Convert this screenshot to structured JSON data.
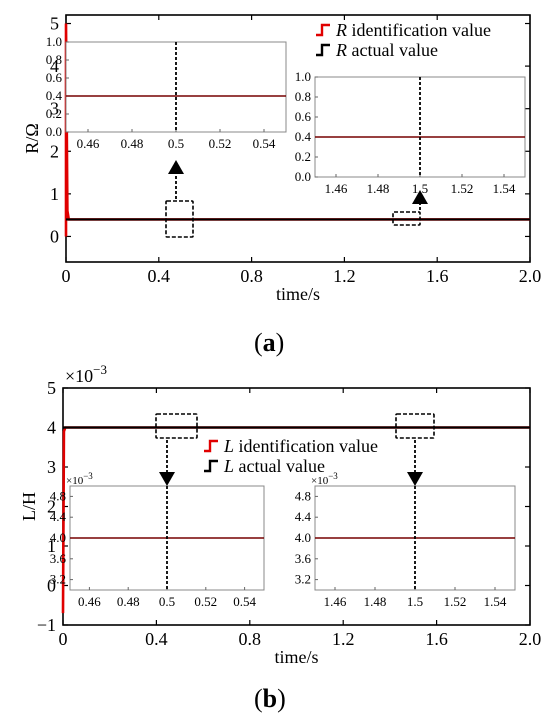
{
  "panel_a_label": "a",
  "panel_b_label": "b",
  "colors": {
    "identification": "#e00000",
    "actual": "#000000",
    "axis": "#000000"
  },
  "chart_data": [
    {
      "type": "line",
      "panel": "a",
      "xlabel": "time/s",
      "ylabel": "R/Ω",
      "xlim": [
        0,
        2.0
      ],
      "ylim": [
        -0.6,
        5.2
      ],
      "xticks": [
        0,
        0.4,
        0.8,
        1.2,
        1.6,
        2.0
      ],
      "xtick_labels": [
        "0",
        "0.4",
        "0.8",
        "1.2",
        "1.6",
        "2.0"
      ],
      "yticks": [
        0,
        1,
        2,
        3,
        4,
        5
      ],
      "ytick_labels": [
        "0",
        "1",
        "2",
        "3",
        "4",
        "5"
      ],
      "legend": {
        "placement": "top-right",
        "entries": [
          {
            "italic": "R",
            "text": " identification value",
            "color": "#e00000"
          },
          {
            "italic": "R",
            "text": " actual value",
            "color": "#000000"
          }
        ]
      },
      "series": [
        {
          "name": "R identification value",
          "x": [
            0,
            0,
            0.006,
            0.012,
            2.0
          ],
          "y": [
            0,
            5.0,
            0.6,
            0.4,
            0.4
          ]
        },
        {
          "name": "R actual value",
          "x": [
            0,
            2.0
          ],
          "y": [
            0.4,
            0.4
          ]
        }
      ],
      "insets": [
        {
          "xlim": [
            0.45,
            0.55
          ],
          "ylim": [
            0,
            1.0
          ],
          "xticks": [
            0.46,
            0.48,
            0.5,
            0.52,
            0.54
          ],
          "xtick_labels": [
            "0.46",
            "0.48",
            "0.5",
            "0.52",
            "0.54"
          ],
          "yticks": [
            0,
            0.2,
            0.4,
            0.6,
            0.8,
            1.0
          ],
          "ytick_labels": [
            "0.0",
            "0.2",
            "0.4",
            "0.6",
            "0.8",
            "1.0"
          ],
          "marker_x": 0.5,
          "value": 0.4,
          "exponent": ""
        },
        {
          "xlim": [
            1.45,
            1.55
          ],
          "ylim": [
            0,
            1.0
          ],
          "xticks": [
            1.46,
            1.48,
            1.5,
            1.52,
            1.54
          ],
          "xtick_labels": [
            "1.46",
            "1.48",
            "1.5",
            "1.52",
            "1.54"
          ],
          "yticks": [
            0,
            0.2,
            0.4,
            0.6,
            0.8,
            1.0
          ],
          "ytick_labels": [
            "0.0",
            "0.2",
            "0.4",
            "0.6",
            "0.8",
            "1.0"
          ],
          "marker_x": 1.5,
          "value": 0.4,
          "exponent": ""
        }
      ]
    },
    {
      "type": "line",
      "panel": "b",
      "xlabel": "time/s",
      "ylabel": "L/H",
      "exponent": "×10",
      "exponent_power": "−3",
      "xlim": [
        0,
        2.0
      ],
      "ylim": [
        -1,
        5
      ],
      "xticks": [
        0,
        0.4,
        0.8,
        1.2,
        1.6,
        2.0
      ],
      "xtick_labels": [
        "0",
        "0.4",
        "0.8",
        "1.2",
        "1.6",
        "2.0"
      ],
      "yticks": [
        -1,
        0,
        1,
        2,
        3,
        4,
        5
      ],
      "ytick_labels": [
        "−1",
        "0",
        "1",
        "2",
        "3",
        "4",
        "5"
      ],
      "legend": {
        "placement": "center",
        "entries": [
          {
            "italic": "L",
            "text": " identification value",
            "color": "#e00000"
          },
          {
            "italic": "L",
            "text": " actual value",
            "color": "#000000"
          }
        ]
      },
      "series": [
        {
          "name": "L identification value",
          "x": [
            0,
            0.004,
            0.01,
            2.0
          ],
          "y": [
            -0.7,
            3.9,
            4.0,
            4.0
          ]
        },
        {
          "name": "L actual value",
          "x": [
            0,
            2.0
          ],
          "y": [
            4.0,
            4.0
          ]
        }
      ],
      "insets": [
        {
          "xlim": [
            0.45,
            0.55
          ],
          "ylim": [
            3.0,
            5.0
          ],
          "xticks": [
            0.46,
            0.48,
            0.5,
            0.52,
            0.54
          ],
          "xtick_labels": [
            "0.46",
            "0.48",
            "0.5",
            "0.52",
            "0.54"
          ],
          "yticks": [
            3.2,
            3.6,
            4.0,
            4.4,
            4.8
          ],
          "ytick_labels": [
            "3.2",
            "3.6",
            "4.0",
            "4.4",
            "4.8"
          ],
          "marker_x": 0.5,
          "value": 4.0,
          "exponent": "×10",
          "exponent_power": "−3"
        },
        {
          "xlim": [
            1.45,
            1.55
          ],
          "ylim": [
            3.0,
            5.0
          ],
          "xticks": [
            1.46,
            1.48,
            1.5,
            1.52,
            1.54
          ],
          "xtick_labels": [
            "1.46",
            "1.48",
            "1.5",
            "1.52",
            "1.54"
          ],
          "yticks": [
            3.2,
            3.6,
            4.0,
            4.4,
            4.8
          ],
          "ytick_labels": [
            "3.2",
            "3.6",
            "4.0",
            "4.4",
            "4.8"
          ],
          "marker_x": 1.5,
          "value": 4.0,
          "exponent": "×10",
          "exponent_power": "−3"
        }
      ]
    }
  ]
}
